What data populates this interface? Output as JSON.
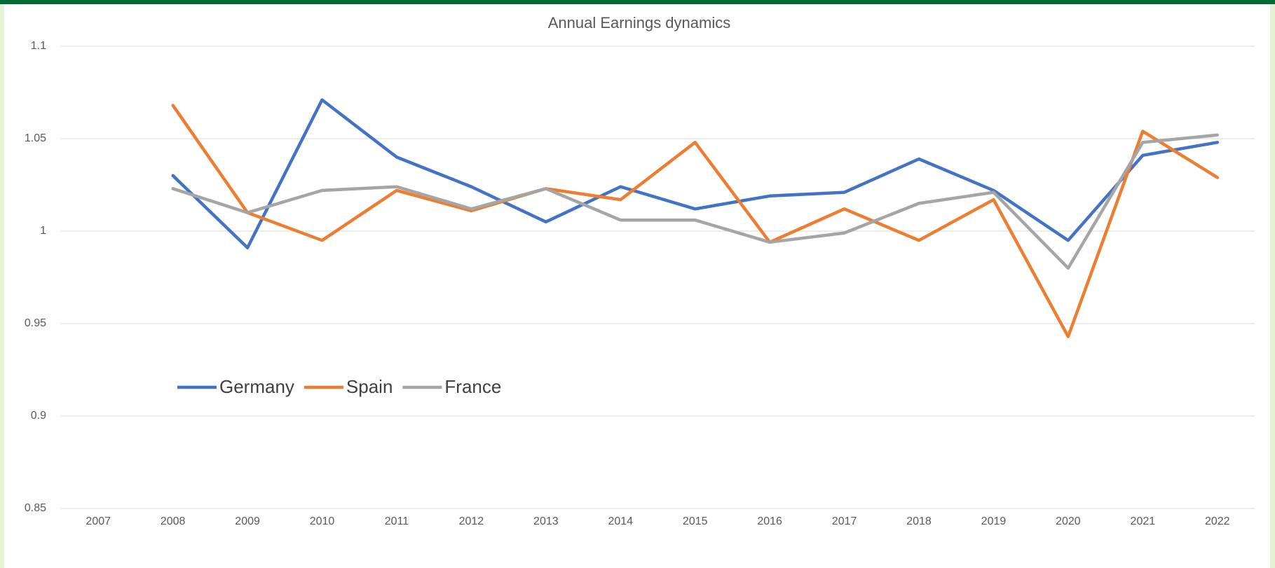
{
  "chart_data": {
    "type": "line",
    "title": "Annual Earnings dynamics",
    "categories": [
      "2007",
      "2008",
      "2009",
      "2010",
      "2011",
      "2012",
      "2013",
      "2014",
      "2015",
      "2016",
      "2017",
      "2018",
      "2019",
      "2020",
      "2021",
      "2022"
    ],
    "series": [
      {
        "name": "Germany",
        "color": "#4472c4",
        "values": [
          null,
          1.03,
          0.991,
          1.071,
          1.04,
          1.024,
          1.005,
          1.024,
          1.012,
          1.019,
          1.021,
          1.039,
          1.022,
          0.995,
          1.041,
          1.048
        ]
      },
      {
        "name": "Spain",
        "color": "#ed7d31",
        "values": [
          null,
          1.068,
          1.01,
          0.995,
          1.022,
          1.011,
          1.023,
          1.017,
          1.048,
          0.994,
          1.012,
          0.995,
          1.017,
          0.943,
          1.054,
          1.029
        ]
      },
      {
        "name": "France",
        "color": "#a5a5a5",
        "values": [
          null,
          1.023,
          1.01,
          1.022,
          1.024,
          1.012,
          1.023,
          1.006,
          1.006,
          0.994,
          0.999,
          1.015,
          1.021,
          0.98,
          1.048,
          1.052
        ]
      }
    ],
    "ylim": [
      0.85,
      1.1
    ],
    "yticks": [
      0.85,
      0.9,
      0.95,
      1,
      1.05,
      1.1
    ],
    "grid": true,
    "legend": "left"
  }
}
